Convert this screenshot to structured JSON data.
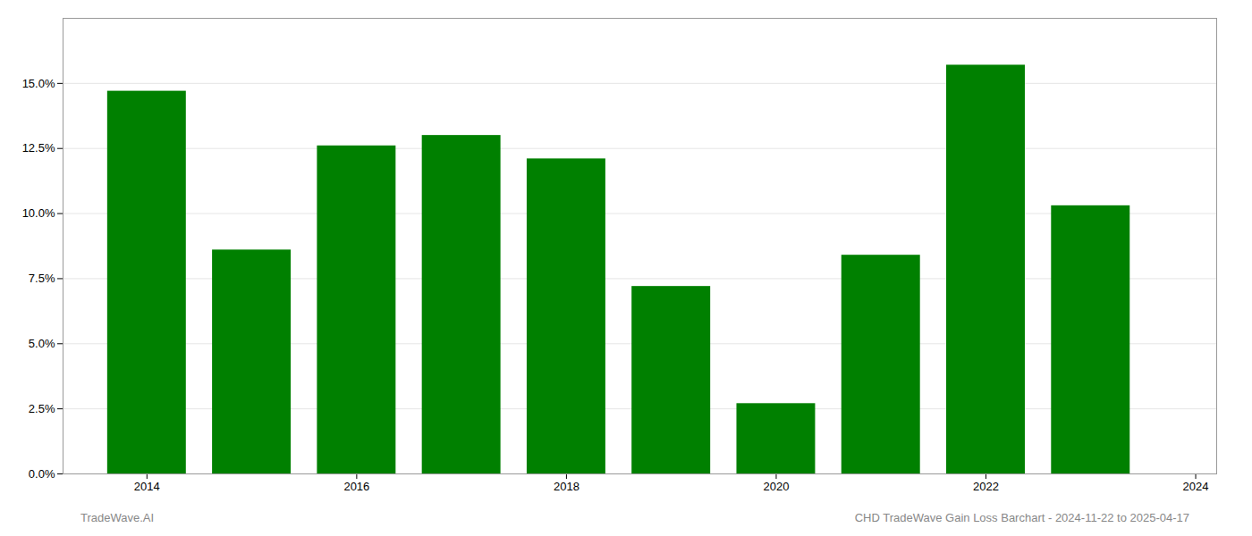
{
  "chart_data": {
    "type": "bar",
    "x": [
      2014,
      2015,
      2016,
      2017,
      2018,
      2019,
      2020,
      2021,
      2022,
      2023
    ],
    "values": [
      0.147,
      0.086,
      0.126,
      0.13,
      0.121,
      0.072,
      0.027,
      0.084,
      0.157,
      0.103
    ],
    "color": "#008000",
    "xlim": [
      2013.2,
      2024.2
    ],
    "xticks": [
      2014,
      2016,
      2018,
      2020,
      2022,
      2024
    ],
    "ylim": [
      0,
      0.175
    ],
    "yticks": [
      {
        "value": 0.0,
        "label": "0.0%"
      },
      {
        "value": 0.025,
        "label": "2.5%"
      },
      {
        "value": 0.05,
        "label": "5.0%"
      },
      {
        "value": 0.075,
        "label": "7.5%"
      },
      {
        "value": 0.1,
        "label": "10.0%"
      },
      {
        "value": 0.125,
        "label": "12.5%"
      },
      {
        "value": 0.15,
        "label": "15.0%"
      }
    ],
    "grid": true,
    "annotations": [
      "TradeWave.AI",
      "CHD TradeWave Gain Loss Barchart - 2024-11-22 to 2025-04-17"
    ]
  }
}
